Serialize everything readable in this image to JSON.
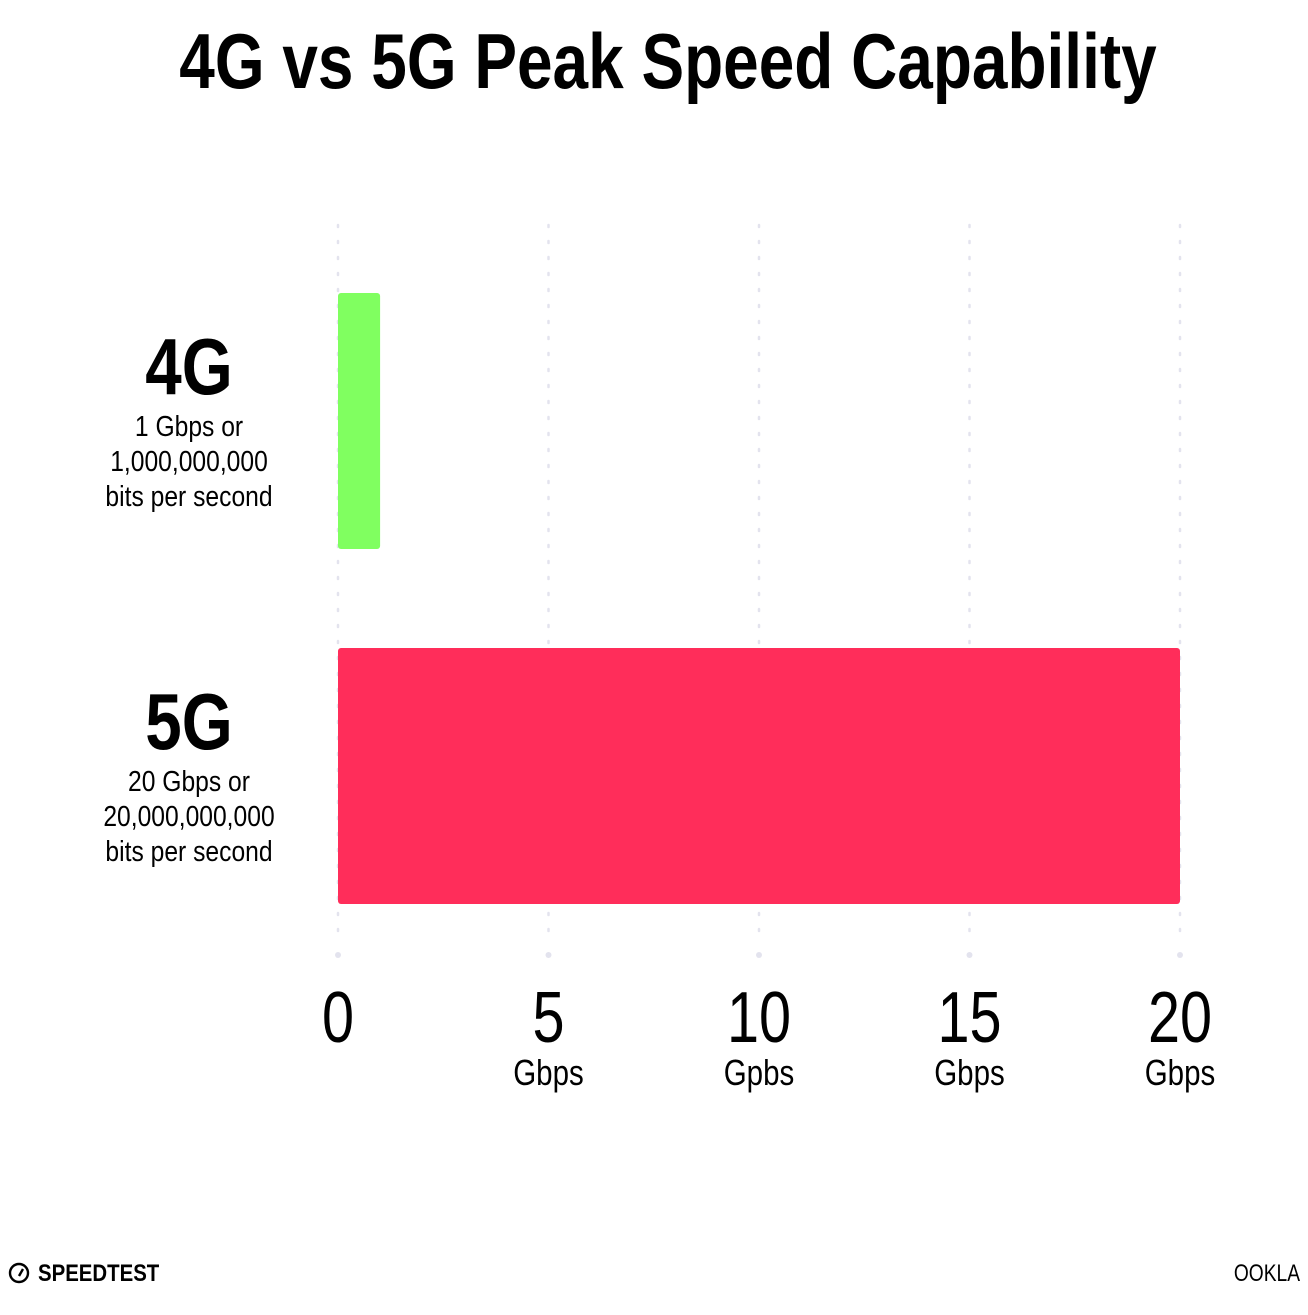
{
  "chart_data": {
    "type": "bar",
    "orientation": "horizontal",
    "title": "4G vs 5G Peak Speed Capability",
    "categories": [
      "4G",
      "5G"
    ],
    "category_descriptions": [
      [
        "1 Gbps or",
        "1,000,000,000",
        "bits per second"
      ],
      [
        "20 Gbps or",
        "20,000,000,000",
        "bits per second"
      ]
    ],
    "values": [
      1,
      20
    ],
    "colors": [
      "#80ff60",
      "#ff2d5a"
    ],
    "xlim": [
      0,
      20
    ],
    "xticks": [
      0,
      5,
      10,
      15,
      20
    ],
    "xtick_labels": [
      "0",
      "5",
      "10",
      "15",
      "20"
    ],
    "xtick_units": [
      "",
      "Gbps",
      "Gpbs",
      "Gbps",
      "Gbps"
    ],
    "grid": "vertical dotted",
    "gridColor": "#e3e3ee"
  },
  "footer": {
    "left_logo": "SPEEDTEST",
    "right_logo": "OOKLA"
  }
}
